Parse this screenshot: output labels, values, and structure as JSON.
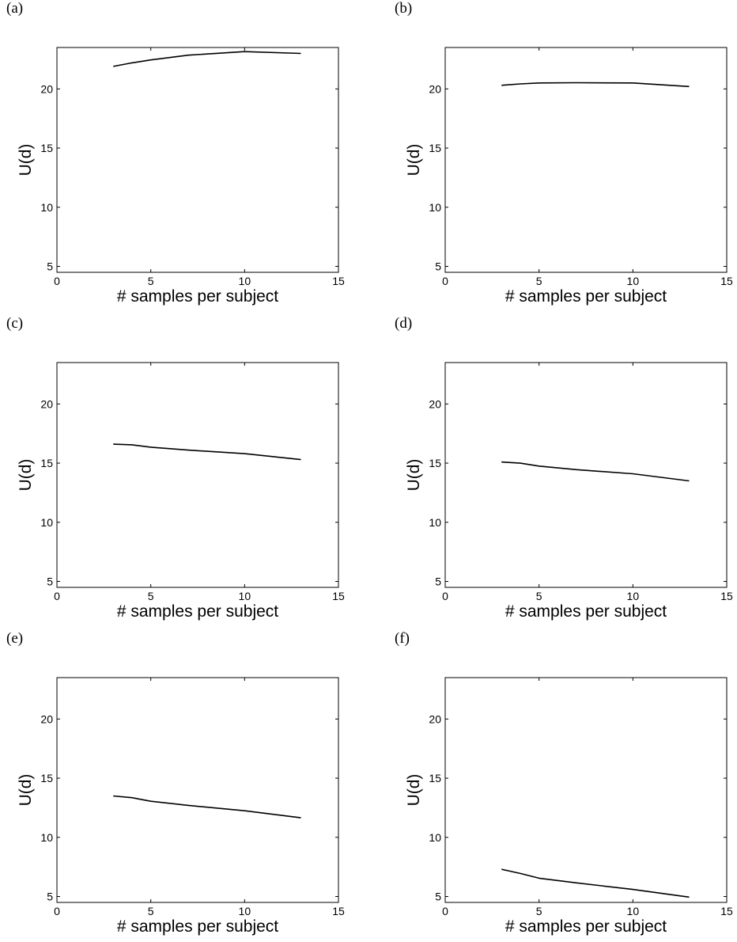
{
  "chart_data": [
    {
      "panel": "(a)",
      "type": "line",
      "xlabel": "# samples per subject",
      "ylabel": "U(d)",
      "xlim": [
        0,
        15
      ],
      "ylim": [
        4.5,
        23.5
      ],
      "xticks": [
        0,
        5,
        10,
        15
      ],
      "yticks": [
        5,
        10,
        15,
        20
      ],
      "grid": false,
      "x": [
        3,
        4,
        5,
        7,
        10,
        13
      ],
      "series": [
        {
          "values": [
            21.9,
            22.2,
            22.45,
            22.85,
            23.15,
            23.0
          ]
        }
      ]
    },
    {
      "panel": "(b)",
      "type": "line",
      "xlabel": "# samples per subject",
      "ylabel": "U(d)",
      "xlim": [
        0,
        15
      ],
      "ylim": [
        4.5,
        23.5
      ],
      "xticks": [
        0,
        5,
        10,
        15
      ],
      "yticks": [
        5,
        10,
        15,
        20
      ],
      "grid": false,
      "x": [
        3,
        4,
        5,
        7,
        10,
        13
      ],
      "series": [
        {
          "values": [
            20.3,
            20.42,
            20.5,
            20.52,
            20.5,
            20.2
          ]
        }
      ]
    },
    {
      "panel": "(c)",
      "type": "line",
      "xlabel": "# samples per subject",
      "ylabel": "U(d)",
      "xlim": [
        0,
        15
      ],
      "ylim": [
        4.5,
        23.5
      ],
      "xticks": [
        0,
        5,
        10,
        15
      ],
      "yticks": [
        5,
        10,
        15,
        20
      ],
      "grid": false,
      "x": [
        3,
        4,
        5,
        7,
        10,
        13
      ],
      "series": [
        {
          "values": [
            16.6,
            16.55,
            16.35,
            16.1,
            15.8,
            15.3
          ]
        }
      ]
    },
    {
      "panel": "(d)",
      "type": "line",
      "xlabel": "# samples per subject",
      "ylabel": "U(d)",
      "xlim": [
        0,
        15
      ],
      "ylim": [
        4.5,
        23.5
      ],
      "xticks": [
        0,
        5,
        10,
        15
      ],
      "yticks": [
        5,
        10,
        15,
        20
      ],
      "grid": false,
      "x": [
        3,
        4,
        5,
        7,
        10,
        13
      ],
      "series": [
        {
          "values": [
            15.1,
            15.0,
            14.75,
            14.45,
            14.1,
            13.5
          ]
        }
      ]
    },
    {
      "panel": "(e)",
      "type": "line",
      "xlabel": "# samples per subject",
      "ylabel": "U(d)",
      "xlim": [
        0,
        15
      ],
      "ylim": [
        4.5,
        23.5
      ],
      "xticks": [
        0,
        5,
        10,
        15
      ],
      "yticks": [
        5,
        10,
        15,
        20
      ],
      "grid": false,
      "x": [
        3,
        4,
        5,
        7,
        10,
        13
      ],
      "series": [
        {
          "values": [
            13.5,
            13.35,
            13.05,
            12.7,
            12.25,
            11.65
          ]
        }
      ]
    },
    {
      "panel": "(f)",
      "type": "line",
      "xlabel": "# samples per subject",
      "ylabel": "U(d)",
      "xlim": [
        0,
        15
      ],
      "ylim": [
        4.5,
        23.5
      ],
      "xticks": [
        0,
        5,
        10,
        15
      ],
      "yticks": [
        5,
        10,
        15,
        20
      ],
      "grid": false,
      "x": [
        3,
        4,
        5,
        7,
        10,
        13
      ],
      "series": [
        {
          "values": [
            7.3,
            6.95,
            6.55,
            6.15,
            5.6,
            4.95
          ]
        }
      ]
    }
  ]
}
